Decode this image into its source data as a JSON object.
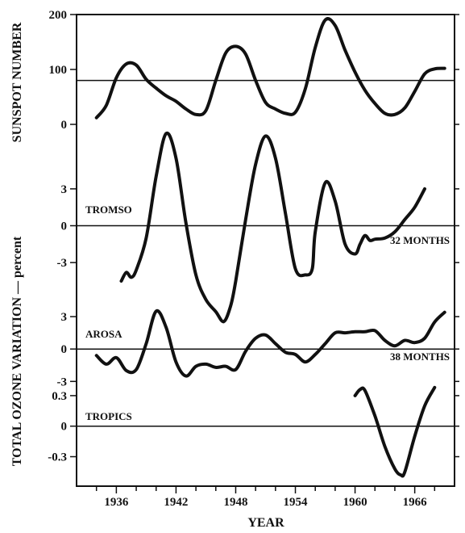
{
  "chart_data": {
    "type": "line",
    "xlabel": "YEAR",
    "x_ticks": [
      1936,
      1942,
      1948,
      1954,
      1960,
      1966
    ],
    "xlim": [
      1932,
      1970
    ],
    "shared_ylabel": "TOTAL OZONE VARIATION — percent",
    "panels": [
      {
        "id": "sunspot",
        "ylabel": "SUNSPOT NUMBER",
        "ylim": [
          0,
          200
        ],
        "y_ticks": [
          0,
          100,
          200
        ],
        "reference_line": 80,
        "label": "",
        "period_label": "",
        "x": [
          1934,
          1935,
          1936,
          1937,
          1938,
          1939,
          1940,
          1941,
          1942,
          1943,
          1944,
          1945,
          1946,
          1947,
          1948,
          1949,
          1950,
          1951,
          1952,
          1953,
          1954,
          1955,
          1956,
          1957,
          1958,
          1959,
          1960,
          1961,
          1962,
          1963,
          1964,
          1965,
          1966,
          1967,
          1968,
          1969
        ],
        "values": [
          12,
          35,
          85,
          110,
          108,
          82,
          66,
          52,
          42,
          28,
          18,
          25,
          80,
          130,
          142,
          128,
          80,
          40,
          28,
          20,
          22,
          65,
          140,
          190,
          180,
          135,
          95,
          62,
          38,
          20,
          18,
          30,
          60,
          92,
          101,
          102
        ]
      },
      {
        "id": "tromso",
        "ylim": [
          -7,
          7
        ],
        "y_ticks": [
          -3,
          0,
          3
        ],
        "reference_line": 0,
        "label": "TROMSO",
        "period_label": "32 MONTHS",
        "x": [
          1936.5,
          1937,
          1937.5,
          1938,
          1939,
          1940,
          1941,
          1942,
          1943,
          1944,
          1945,
          1946,
          1946.8,
          1947.5,
          1948,
          1949,
          1950,
          1951,
          1952,
          1953,
          1954,
          1955,
          1955.7,
          1956,
          1957,
          1958,
          1959,
          1960,
          1960.5,
          1961,
          1961.5,
          1962,
          1963,
          1964,
          1965,
          1966,
          1967
        ],
        "values": [
          -4.5,
          -3.8,
          -4.2,
          -3.6,
          -1.0,
          4.0,
          7.5,
          5.5,
          0.2,
          -4.0,
          -6.0,
          -7.0,
          -7.8,
          -6.5,
          -4.5,
          0.5,
          5.0,
          7.3,
          5.5,
          1.0,
          -3.5,
          -4.0,
          -3.5,
          -0.5,
          3.5,
          2.0,
          -1.5,
          -2.3,
          -1.5,
          -0.8,
          -1.2,
          -1.1,
          -1.0,
          -0.5,
          0.5,
          1.5,
          3.0
        ]
      },
      {
        "id": "arosa",
        "ylim": [
          -3.5,
          4.5
        ],
        "y_ticks": [
          -3,
          0,
          3
        ],
        "reference_line": 0,
        "label": "AROSA",
        "period_label": "38 MONTHS",
        "x": [
          1934,
          1935,
          1936,
          1937,
          1938,
          1939,
          1940,
          1941,
          1942,
          1943,
          1944,
          1945,
          1946,
          1947,
          1948,
          1949,
          1950,
          1951,
          1952,
          1953,
          1954,
          1955,
          1956,
          1957,
          1958,
          1959,
          1960,
          1961,
          1962,
          1963,
          1964,
          1965,
          1966,
          1967,
          1968,
          1969
        ],
        "values": [
          -0.6,
          -1.4,
          -0.8,
          -2.0,
          -1.9,
          0.5,
          3.5,
          2.0,
          -1.2,
          -2.5,
          -1.6,
          -1.4,
          -1.7,
          -1.6,
          -1.9,
          -0.2,
          1.0,
          1.3,
          0.5,
          -0.3,
          -0.5,
          -1.2,
          -0.5,
          0.5,
          1.5,
          1.5,
          1.6,
          1.6,
          1.7,
          0.8,
          0.3,
          0.8,
          0.6,
          1.0,
          2.5,
          3.4
        ]
      },
      {
        "id": "tropics",
        "ylim": [
          -0.55,
          0.45
        ],
        "y_ticks": [
          -0.3,
          0,
          0.3
        ],
        "y_tick_labels": [
          "-0.3",
          "0",
          "0.3"
        ],
        "reference_line": 0,
        "label": "TROPICS",
        "period_label": "",
        "x": [
          1960,
          1960.5,
          1961,
          1962,
          1963,
          1964,
          1964.6,
          1965,
          1966,
          1967,
          1968
        ],
        "values": [
          0.3,
          0.36,
          0.35,
          0.1,
          -0.2,
          -0.42,
          -0.48,
          -0.45,
          -0.1,
          0.2,
          0.38
        ]
      }
    ]
  }
}
